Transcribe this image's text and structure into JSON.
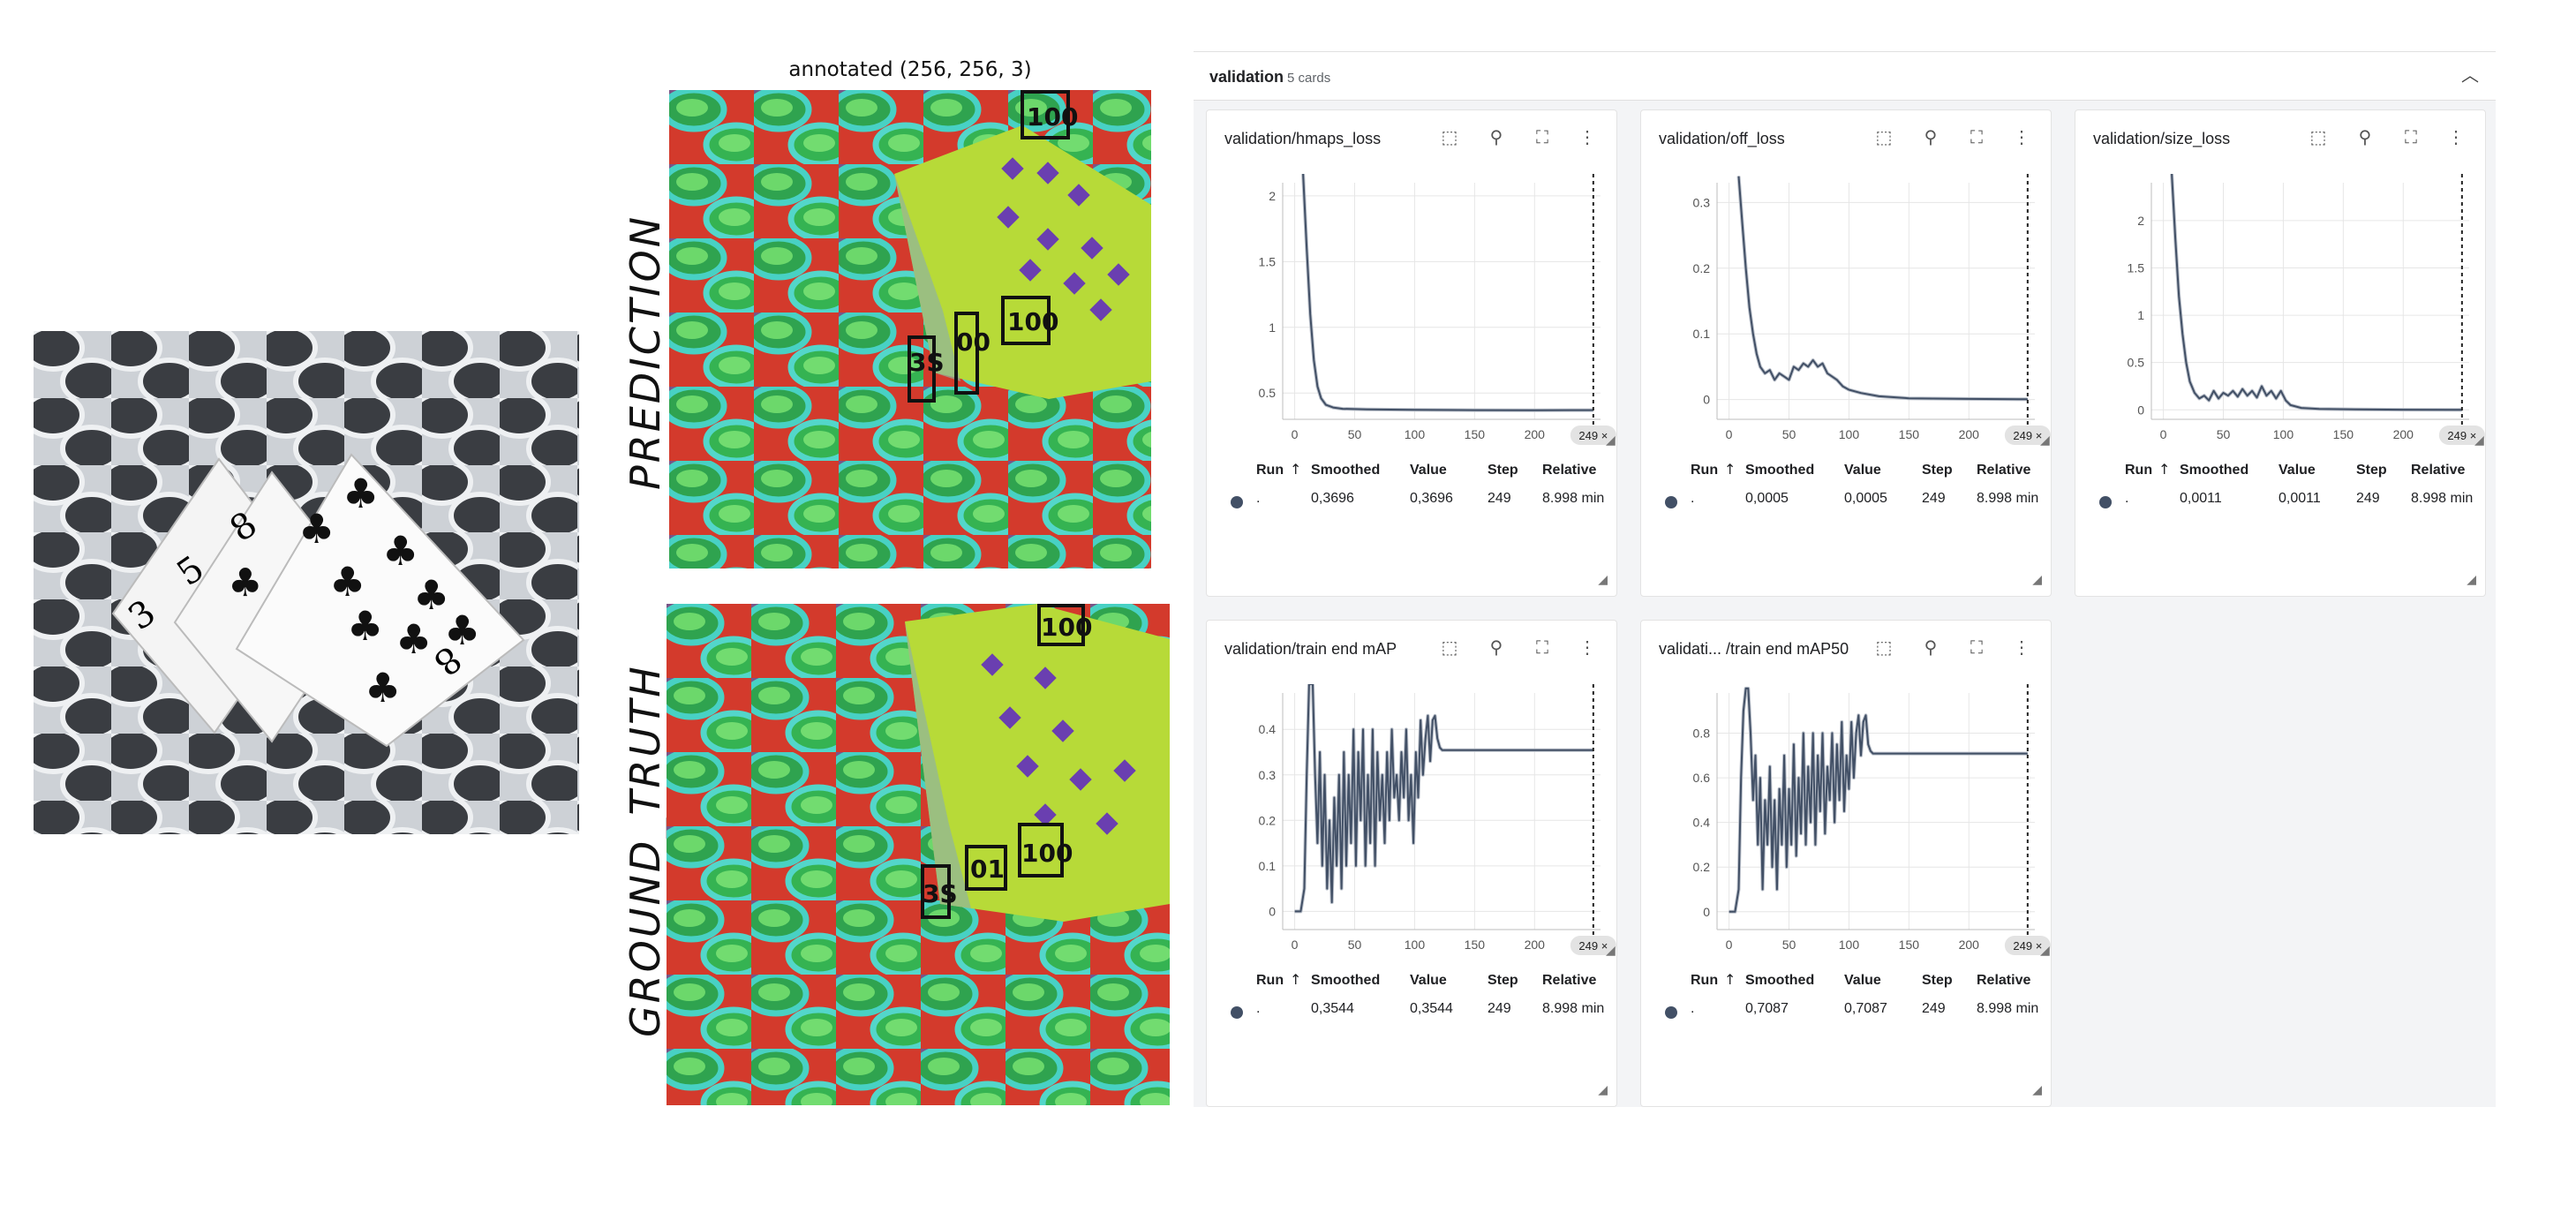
{
  "annotated_title": "annotated (256, 256, 3)",
  "prediction_label": "PREDICTION",
  "ground_truth_label": "GROUND_TRUTH",
  "pred_boxes": [
    "100",
    "100",
    "00",
    "3S"
  ],
  "gt_boxes": [
    "100",
    "100",
    "01",
    "3S"
  ],
  "section": {
    "title": "validation",
    "count": "5 cards"
  },
  "table_headers": [
    "Run",
    "Smoothed",
    "Value",
    "Step",
    "Relative"
  ],
  "colors": {
    "line": "#425066",
    "shadow": "#b9bfc9",
    "grid": "#e6e6e6",
    "accent": "#425066"
  },
  "cards": [
    {
      "title": "validation/hmaps_loss",
      "chart_data": {
        "type": "line",
        "x_ticks": [
          0,
          50,
          100,
          150,
          200
        ],
        "y_ticks": [
          "0.5",
          "1",
          "1.5",
          "2"
        ],
        "ylim": [
          0.3,
          2.1
        ],
        "xlim": [
          -10,
          255
        ],
        "step_marker": "249 ×",
        "points": [
          [
            7,
            2.2
          ],
          [
            10,
            1.6
          ],
          [
            13,
            1.1
          ],
          [
            16,
            0.75
          ],
          [
            19,
            0.55
          ],
          [
            22,
            0.46
          ],
          [
            26,
            0.41
          ],
          [
            32,
            0.39
          ],
          [
            40,
            0.38
          ],
          [
            60,
            0.375
          ],
          [
            100,
            0.372
          ],
          [
            150,
            0.37
          ],
          [
            200,
            0.369
          ],
          [
            249,
            0.3696
          ]
        ]
      },
      "row": {
        "run": ".",
        "smoothed": "0,3696",
        "value": "0,3696",
        "step": "249",
        "relative": "8.998 min"
      }
    },
    {
      "title": "validation/off_loss",
      "chart_data": {
        "type": "line",
        "x_ticks": [
          0,
          50,
          100,
          150,
          200
        ],
        "y_ticks": [
          "0",
          "0.1",
          "0.2",
          "0.3"
        ],
        "ylim": [
          -0.03,
          0.33
        ],
        "xlim": [
          -10,
          255
        ],
        "step_marker": "249 ×",
        "points": [
          [
            8,
            0.34
          ],
          [
            11,
            0.27
          ],
          [
            14,
            0.2
          ],
          [
            17,
            0.14
          ],
          [
            20,
            0.1
          ],
          [
            23,
            0.07
          ],
          [
            26,
            0.05
          ],
          [
            30,
            0.04
          ],
          [
            34,
            0.045
          ],
          [
            38,
            0.03
          ],
          [
            42,
            0.04
          ],
          [
            46,
            0.035
          ],
          [
            50,
            0.03
          ],
          [
            54,
            0.05
          ],
          [
            58,
            0.045
          ],
          [
            62,
            0.055
          ],
          [
            66,
            0.05
          ],
          [
            70,
            0.06
          ],
          [
            74,
            0.05
          ],
          [
            78,
            0.055
          ],
          [
            82,
            0.04
          ],
          [
            86,
            0.035
          ],
          [
            90,
            0.03
          ],
          [
            95,
            0.02
          ],
          [
            100,
            0.015
          ],
          [
            110,
            0.01
          ],
          [
            125,
            0.005
          ],
          [
            150,
            0.002
          ],
          [
            200,
            0.001
          ],
          [
            249,
            0.0005
          ]
        ]
      },
      "row": {
        "run": ".",
        "smoothed": "0,0005",
        "value": "0,0005",
        "step": "249",
        "relative": "8.998 min"
      }
    },
    {
      "title": "validation/size_loss",
      "chart_data": {
        "type": "line",
        "x_ticks": [
          0,
          50,
          100,
          150,
          200
        ],
        "y_ticks": [
          "0",
          "0.5",
          "1",
          "1.5",
          "2"
        ],
        "ylim": [
          -0.1,
          2.4
        ],
        "xlim": [
          -10,
          255
        ],
        "step_marker": "249 ×",
        "points": [
          [
            7,
            2.6
          ],
          [
            10,
            1.8
          ],
          [
            13,
            1.2
          ],
          [
            16,
            0.8
          ],
          [
            19,
            0.5
          ],
          [
            22,
            0.3
          ],
          [
            26,
            0.18
          ],
          [
            30,
            0.12
          ],
          [
            34,
            0.15
          ],
          [
            38,
            0.1
          ],
          [
            42,
            0.2
          ],
          [
            46,
            0.12
          ],
          [
            50,
            0.18
          ],
          [
            54,
            0.15
          ],
          [
            58,
            0.2
          ],
          [
            62,
            0.14
          ],
          [
            66,
            0.22
          ],
          [
            70,
            0.15
          ],
          [
            74,
            0.2
          ],
          [
            78,
            0.13
          ],
          [
            82,
            0.25
          ],
          [
            86,
            0.15
          ],
          [
            90,
            0.2
          ],
          [
            94,
            0.12
          ],
          [
            98,
            0.2
          ],
          [
            102,
            0.1
          ],
          [
            106,
            0.05
          ],
          [
            115,
            0.02
          ],
          [
            130,
            0.01
          ],
          [
            160,
            0.005
          ],
          [
            200,
            0.002
          ],
          [
            249,
            0.0011
          ]
        ]
      },
      "row": {
        "run": ".",
        "smoothed": "0,0011",
        "value": "0,0011",
        "step": "249",
        "relative": "8.998 min"
      }
    },
    {
      "title": "validation/train end mAP",
      "chart_data": {
        "type": "line",
        "x_ticks": [
          0,
          50,
          100,
          150,
          200
        ],
        "y_ticks": [
          "0",
          "0.1",
          "0.2",
          "0.3",
          "0.4"
        ],
        "ylim": [
          -0.04,
          0.48
        ],
        "xlim": [
          -10,
          255
        ],
        "step_marker": "249 ×",
        "points": [
          [
            0,
            0
          ],
          [
            5,
            0
          ],
          [
            8,
            0.05
          ],
          [
            10,
            0.3
          ],
          [
            12,
            0.5
          ],
          [
            15,
            0.5
          ],
          [
            17,
            0.3
          ],
          [
            19,
            0.15
          ],
          [
            21,
            0.35
          ],
          [
            23,
            0.1
          ],
          [
            25,
            0.3
          ],
          [
            27,
            0.05
          ],
          [
            29,
            0.2
          ],
          [
            31,
            0.02
          ],
          [
            33,
            0.25
          ],
          [
            35,
            0.1
          ],
          [
            37,
            0.3
          ],
          [
            39,
            0.05
          ],
          [
            41,
            0.35
          ],
          [
            43,
            0.1
          ],
          [
            45,
            0.3
          ],
          [
            47,
            0.15
          ],
          [
            49,
            0.4
          ],
          [
            51,
            0.1
          ],
          [
            53,
            0.35
          ],
          [
            55,
            0.2
          ],
          [
            57,
            0.4
          ],
          [
            59,
            0.1
          ],
          [
            61,
            0.3
          ],
          [
            63,
            0.15
          ],
          [
            65,
            0.4
          ],
          [
            67,
            0.1
          ],
          [
            69,
            0.35
          ],
          [
            71,
            0.2
          ],
          [
            73,
            0.3
          ],
          [
            75,
            0.15
          ],
          [
            77,
            0.35
          ],
          [
            79,
            0.2
          ],
          [
            81,
            0.4
          ],
          [
            83,
            0.25
          ],
          [
            85,
            0.3
          ],
          [
            87,
            0.2
          ],
          [
            89,
            0.35
          ],
          [
            91,
            0.25
          ],
          [
            93,
            0.4
          ],
          [
            95,
            0.2
          ],
          [
            97,
            0.3
          ],
          [
            99,
            0.15
          ],
          [
            101,
            0.35
          ],
          [
            103,
            0.25
          ],
          [
            105,
            0.42
          ],
          [
            107,
            0.3
          ],
          [
            109,
            0.38
          ],
          [
            111,
            0.43
          ],
          [
            113,
            0.33
          ],
          [
            115,
            0.42
          ],
          [
            117,
            0.43
          ],
          [
            119,
            0.38
          ],
          [
            121,
            0.36
          ],
          [
            123,
            0.3544
          ],
          [
            249,
            0.3544
          ]
        ]
      },
      "row": {
        "run": ".",
        "smoothed": "0,3544",
        "value": "0,3544",
        "step": "249",
        "relative": "8.998 min"
      }
    },
    {
      "title": "validati... /train end mAP50",
      "chart_data": {
        "type": "line",
        "x_ticks": [
          0,
          50,
          100,
          150,
          200
        ],
        "y_ticks": [
          "0",
          "0.2",
          "0.4",
          "0.6",
          "0.8"
        ],
        "ylim": [
          -0.08,
          0.98
        ],
        "xlim": [
          -10,
          255
        ],
        "step_marker": "249 ×",
        "points": [
          [
            0,
            0
          ],
          [
            5,
            0
          ],
          [
            8,
            0.1
          ],
          [
            10,
            0.6
          ],
          [
            12,
            0.9
          ],
          [
            14,
            1.0
          ],
          [
            16,
            1.0
          ],
          [
            18,
            0.8
          ],
          [
            20,
            0.5
          ],
          [
            22,
            0.7
          ],
          [
            24,
            0.3
          ],
          [
            26,
            0.6
          ],
          [
            28,
            0.1
          ],
          [
            30,
            0.5
          ],
          [
            32,
            0.3
          ],
          [
            34,
            0.65
          ],
          [
            36,
            0.2
          ],
          [
            38,
            0.5
          ],
          [
            40,
            0.1
          ],
          [
            42,
            0.55
          ],
          [
            44,
            0.3
          ],
          [
            46,
            0.7
          ],
          [
            48,
            0.2
          ],
          [
            50,
            0.55
          ],
          [
            52,
            0.3
          ],
          [
            54,
            0.75
          ],
          [
            56,
            0.25
          ],
          [
            58,
            0.6
          ],
          [
            60,
            0.35
          ],
          [
            62,
            0.8
          ],
          [
            64,
            0.3
          ],
          [
            66,
            0.65
          ],
          [
            68,
            0.4
          ],
          [
            70,
            0.8
          ],
          [
            72,
            0.3
          ],
          [
            74,
            0.7
          ],
          [
            76,
            0.45
          ],
          [
            78,
            0.8
          ],
          [
            80,
            0.35
          ],
          [
            82,
            0.65
          ],
          [
            84,
            0.5
          ],
          [
            86,
            0.8
          ],
          [
            88,
            0.4
          ],
          [
            90,
            0.75
          ],
          [
            92,
            0.5
          ],
          [
            94,
            0.85
          ],
          [
            96,
            0.45
          ],
          [
            98,
            0.7
          ],
          [
            100,
            0.55
          ],
          [
            102,
            0.85
          ],
          [
            104,
            0.6
          ],
          [
            106,
            0.8
          ],
          [
            108,
            0.88
          ],
          [
            110,
            0.7
          ],
          [
            112,
            0.85
          ],
          [
            114,
            0.88
          ],
          [
            116,
            0.75
          ],
          [
            118,
            0.72
          ],
          [
            120,
            0.7087
          ],
          [
            249,
            0.7087
          ]
        ]
      },
      "row": {
        "run": ".",
        "smoothed": "0,7087",
        "value": "0,7087",
        "step": "249",
        "relative": "8.998 min"
      }
    }
  ]
}
